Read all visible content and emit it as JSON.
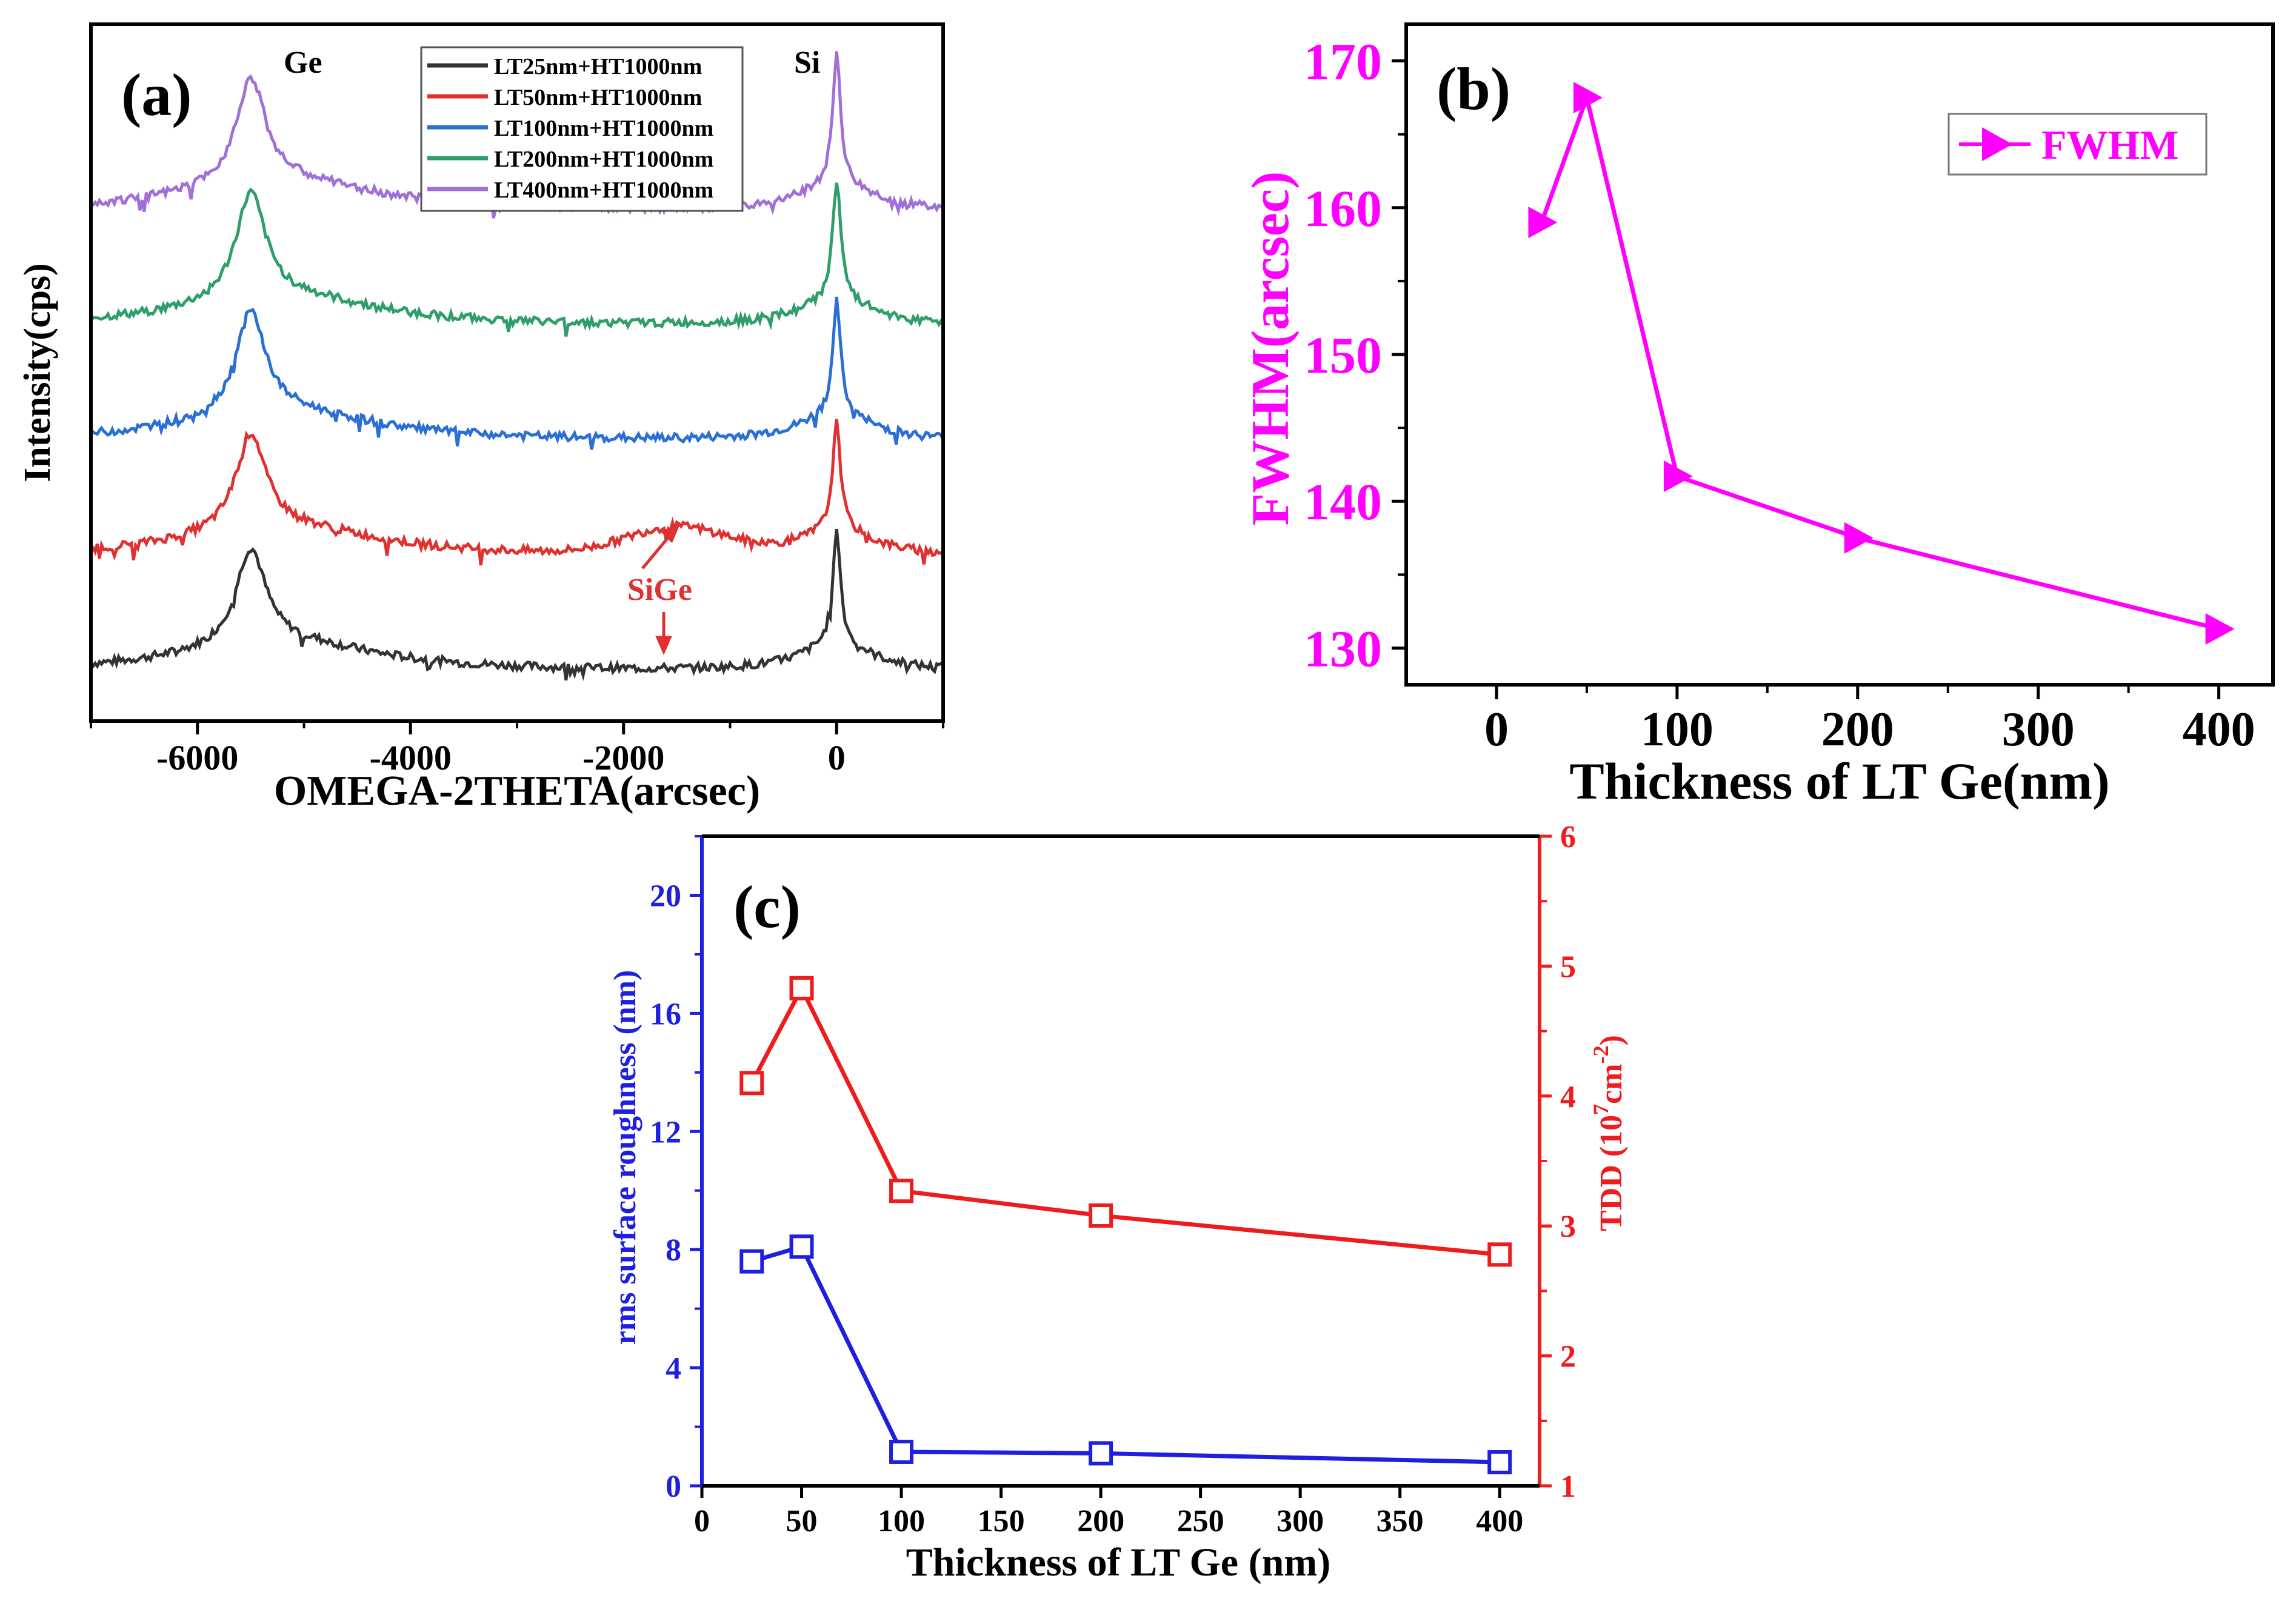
{
  "chart_data": [
    {
      "id": "a",
      "type": "line",
      "panel_label": "(a)",
      "xlabel": "OMEGA-2THETA(arcsec)",
      "ylabel": "Intensity(cps)",
      "xlim": [
        -7000,
        1000
      ],
      "xticks": [
        -6000,
        -4000,
        -2000,
        0
      ],
      "xtick_labels": [
        "-6000",
        "-4000",
        "-2000",
        "0"
      ],
      "peak_labels": {
        "ge": "Ge",
        "si": "Si",
        "sige": "SiGe"
      },
      "peaks": {
        "ge_x": -5500,
        "si_x": 0,
        "sige_x": -1500
      },
      "series": [
        {
          "name": "LT25nm+HT1000nm",
          "color": "#333333",
          "offset": 0,
          "ge_height": 2.9,
          "si_height": 3.4,
          "sige_height": 0
        },
        {
          "name": "LT50nm+HT1000nm",
          "color": "#e03030",
          "offset": 1,
          "ge_height": 2.9,
          "si_height": 3.2,
          "sige_height": 0.8
        },
        {
          "name": "LT100nm+HT1000nm",
          "color": "#2a6fd6",
          "offset": 2,
          "ge_height": 3.1,
          "si_height": 3.4,
          "sige_height": 0
        },
        {
          "name": "LT200nm+HT1000nm",
          "color": "#2e9e6a",
          "offset": 3,
          "ge_height": 3.2,
          "si_height": 3.6,
          "sige_height": 0
        },
        {
          "name": "LT400nm+HT1000nm",
          "color": "#a070d8",
          "offset": 4,
          "ge_height": 3.2,
          "si_height": 3.9,
          "sige_height": 0
        }
      ]
    },
    {
      "id": "b",
      "type": "line",
      "panel_label": "(b)",
      "xlabel": "Thickness of LT Ge(nm)",
      "ylabel": "FWHM(arcsec)",
      "xlim": [
        -50,
        430
      ],
      "ylim": [
        127.5,
        172.5
      ],
      "xticks": [
        0,
        100,
        200,
        300,
        400
      ],
      "xtick_labels": [
        "0",
        "100",
        "200",
        "300",
        "400"
      ],
      "yticks": [
        130,
        140,
        150,
        160,
        170
      ],
      "ytick_labels": [
        "130",
        "140",
        "150",
        "160",
        "170"
      ],
      "color": "#ff00ff",
      "legend": "FWHM",
      "x": [
        25,
        50,
        100,
        200,
        400
      ],
      "y": [
        159,
        167.5,
        141.7,
        137.5,
        131.3
      ]
    },
    {
      "id": "c",
      "type": "line",
      "panel_label": "(c)",
      "xlabel": "Thickness of LT Ge (nm)",
      "ylabel": "rms surface roughness (nm)",
      "ylabel_right": "TDD (10",
      "ylabel_right_sup": "7",
      "ylabel_right_unit": "cm",
      "ylabel_right_unit_sup": "-2",
      "ylabel_right_close": ")",
      "xlim": [
        0,
        420
      ],
      "ylim": [
        0,
        22
      ],
      "ylim_right": [
        1,
        6
      ],
      "xticks": [
        0,
        50,
        100,
        150,
        200,
        250,
        300,
        350,
        400
      ],
      "xtick_labels": [
        "0",
        "50",
        "100",
        "150",
        "200",
        "250",
        "300",
        "350",
        "400"
      ],
      "yticks": [
        0,
        4,
        8,
        12,
        16,
        20
      ],
      "ytick_labels": [
        "0",
        "4",
        "8",
        "12",
        "16",
        "20"
      ],
      "yticks_right": [
        1,
        2,
        3,
        4,
        5,
        6
      ],
      "ytick_labels_right": [
        "1",
        "2",
        "3",
        "4",
        "5",
        "6"
      ],
      "x": [
        25,
        50,
        100,
        200,
        400
      ],
      "series": [
        {
          "name": "rms surface roughness",
          "axis": "left",
          "color": "#1f1fe0",
          "values": [
            7.6,
            8.1,
            1.15,
            1.1,
            0.8
          ]
        },
        {
          "name": "TDD",
          "axis": "right",
          "color": "#ee1c1c",
          "values": [
            4.1,
            4.83,
            3.27,
            3.08,
            2.78
          ]
        }
      ]
    }
  ]
}
